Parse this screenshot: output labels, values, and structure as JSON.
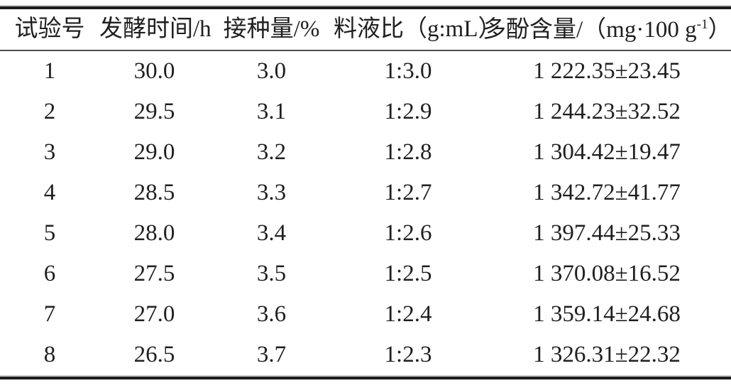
{
  "table": {
    "columns": [
      {
        "label": "试验号"
      },
      {
        "label": "发酵时间/h"
      },
      {
        "label": "接种量/%"
      },
      {
        "label": "料液比（g:mL）"
      },
      {
        "label": "多酚含量/（mg·100 g⁻¹）",
        "prefix": "多酚含量/（mg·100 g",
        "sup": "-1",
        "suffix": "）"
      }
    ],
    "rows": [
      [
        "1",
        "30.0",
        "3.0",
        "1:3.0",
        "1 222.35±23.45"
      ],
      [
        "2",
        "29.5",
        "3.1",
        "1:2.9",
        "1 244.23±32.52"
      ],
      [
        "3",
        "29.0",
        "3.2",
        "1:2.8",
        "1 304.42±19.47"
      ],
      [
        "4",
        "28.5",
        "3.3",
        "1:2.7",
        "1 342.72±41.77"
      ],
      [
        "5",
        "28.0",
        "3.4",
        "1:2.6",
        "1 397.44±25.33"
      ],
      [
        "6",
        "27.5",
        "3.5",
        "1:2.5",
        "1 370.08±16.52"
      ],
      [
        "7",
        "27.0",
        "3.6",
        "1:2.4",
        "1 359.14±24.68"
      ],
      [
        "8",
        "26.5",
        "3.7",
        "1:2.3",
        "1 326.31±22.32"
      ]
    ]
  },
  "colors": {
    "background": "#ffffff",
    "text": "#1f1f1f",
    "rule_dark": "#1c1c1c",
    "rule_gray": "#c6c6c6",
    "header_rule": "#4f4f4f"
  }
}
